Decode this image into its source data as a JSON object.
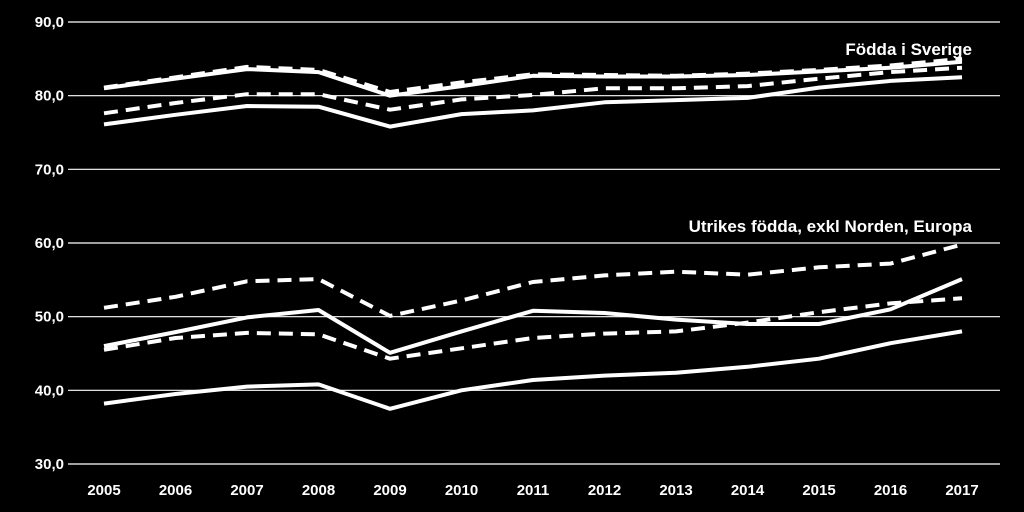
{
  "colors": {
    "background": "#000000",
    "lines": "#ffffff",
    "grid": "#ffffff"
  },
  "chart_data": {
    "type": "line",
    "title": "",
    "xlabel": "",
    "ylabel": "",
    "x": [
      "2005",
      "2006",
      "2007",
      "2008",
      "2009",
      "2010",
      "2011",
      "2012",
      "2013",
      "2014",
      "2015",
      "2016",
      "2017"
    ],
    "ylim": [
      30,
      90
    ],
    "yticks": [
      "30,0",
      "40,0",
      "50,0",
      "60,0",
      "70,0",
      "80,0",
      "90,0"
    ],
    "yticks_values": [
      30,
      40,
      50,
      60,
      70,
      80,
      90
    ],
    "grid": true,
    "legend": "none",
    "annotations": [
      {
        "text": "Födda i Sverige",
        "x": "2017",
        "y": 85.5
      },
      {
        "text": "Utrikes födda, exkl Norden, Europa",
        "x": "2017",
        "y": 61.5
      }
    ],
    "series": [
      {
        "style": "solid",
        "group": "Födda i Sverige",
        "values": [
          81.0,
          82.3,
          83.6,
          83.2,
          80.0,
          81.3,
          82.7,
          82.6,
          82.6,
          82.8,
          83.3,
          83.8,
          84.6
        ]
      },
      {
        "style": "dashed",
        "group": "Födda i Sverige",
        "values": [
          81.1,
          82.5,
          83.9,
          83.5,
          80.5,
          81.8,
          82.9,
          82.8,
          82.7,
          83.0,
          83.5,
          84.1,
          85.0
        ]
      },
      {
        "style": "dashed",
        "group": "Födda i Sverige",
        "values": [
          77.6,
          79.0,
          80.2,
          80.2,
          78.1,
          79.5,
          80.1,
          81.0,
          81.0,
          81.3,
          82.3,
          83.2,
          83.8
        ]
      },
      {
        "style": "solid",
        "group": "Födda i Sverige",
        "values": [
          76.1,
          77.4,
          78.6,
          78.5,
          75.8,
          77.5,
          78.0,
          79.1,
          79.4,
          79.7,
          81.1,
          82.0,
          82.5
        ]
      },
      {
        "style": "dashed",
        "group": "Utrikes födda, exkl Norden, Europa",
        "values": [
          51.2,
          52.7,
          54.8,
          55.1,
          50.1,
          52.2,
          54.7,
          55.6,
          56.1,
          55.7,
          56.7,
          57.2,
          59.8
        ]
      },
      {
        "style": "solid",
        "group": "Utrikes födda, exkl Norden, Europa",
        "values": [
          46.0,
          47.9,
          49.9,
          50.9,
          45.1,
          48.0,
          50.8,
          50.5,
          49.6,
          49.0,
          49.0,
          51.0,
          55.1
        ]
      },
      {
        "style": "dashed",
        "group": "Utrikes födda, exkl Norden, Europa",
        "values": [
          45.5,
          47.1,
          47.8,
          47.6,
          44.3,
          45.7,
          47.1,
          47.7,
          48.0,
          49.2,
          50.6,
          51.8,
          52.5
        ]
      },
      {
        "style": "solid",
        "group": "Utrikes födda, exkl Norden, Europa",
        "values": [
          38.2,
          39.5,
          40.5,
          40.8,
          37.5,
          40.0,
          41.4,
          42.0,
          42.4,
          43.2,
          44.3,
          46.4,
          48.0
        ]
      }
    ]
  }
}
